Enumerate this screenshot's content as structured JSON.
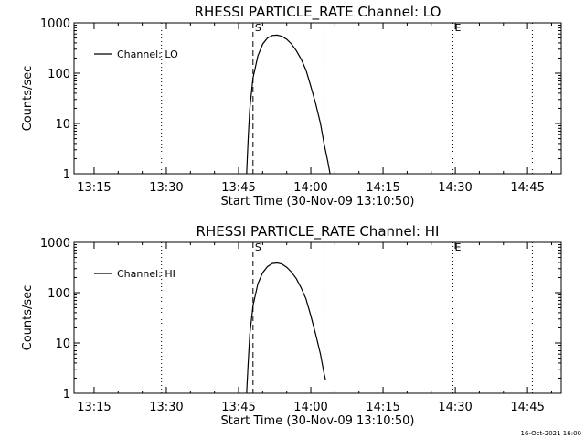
{
  "footer_timestamp": "16-Oct-2021 16:00",
  "colors": {
    "background": "#ffffff",
    "foreground": "#000000"
  },
  "chart_data": [
    {
      "type": "line",
      "title": "RHESSI PARTICLE_RATE Channel: LO",
      "xlabel": "Start Time (30-Nov-09 13:10:50)",
      "ylabel": "Counts/sec",
      "y_scale": "log",
      "ylim": [
        1,
        1000
      ],
      "y_ticks": [
        1,
        10,
        100,
        1000
      ],
      "y_tick_labels": [
        "1",
        "10",
        "100",
        "1000"
      ],
      "xlim": [
        "13:10:50",
        "14:52:00"
      ],
      "x_ticks": [
        "13:15",
        "13:30",
        "13:45",
        "14:00",
        "14:15",
        "14:30",
        "14:45"
      ],
      "legend": {
        "entries": [
          "Channel: LO"
        ],
        "position": "top-left"
      },
      "markers": [
        {
          "label": "S",
          "time": "13:48:00",
          "style": "dashed"
        },
        {
          "label": "",
          "time": "14:02:45",
          "style": "dashed"
        },
        {
          "label": "",
          "time": "13:29:00",
          "style": "dotted"
        },
        {
          "label": "E",
          "time": "14:29:30",
          "style": "dotted"
        },
        {
          "label": "",
          "time": "14:46:00",
          "style": "dotted"
        }
      ],
      "series": [
        {
          "name": "Channel: LO",
          "x": [
            "13:46:40",
            "13:47:00",
            "13:47:20",
            "13:48:00",
            "13:49:00",
            "13:50:00",
            "13:51:00",
            "13:52:00",
            "13:53:00",
            "13:54:00",
            "13:55:00",
            "13:56:00",
            "13:57:00",
            "13:58:00",
            "13:59:00",
            "14:00:00",
            "14:01:00",
            "14:02:00",
            "14:02:45",
            "14:03:30",
            "14:04:00"
          ],
          "values": [
            1,
            5,
            20,
            80,
            220,
            380,
            500,
            560,
            570,
            540,
            470,
            380,
            280,
            190,
            115,
            55,
            25,
            10,
            4,
            1.8,
            1
          ]
        }
      ]
    },
    {
      "type": "line",
      "title": "RHESSI PARTICLE_RATE Channel: HI",
      "xlabel": "Start Time (30-Nov-09 13:10:50)",
      "ylabel": "Counts/sec",
      "y_scale": "log",
      "ylim": [
        1,
        1000
      ],
      "y_ticks": [
        1,
        10,
        100,
        1000
      ],
      "y_tick_labels": [
        "1",
        "10",
        "100",
        "1000"
      ],
      "xlim": [
        "13:10:50",
        "14:52:00"
      ],
      "x_ticks": [
        "13:15",
        "13:30",
        "13:45",
        "14:00",
        "14:15",
        "14:30",
        "14:45"
      ],
      "legend": {
        "entries": [
          "Channel: HI"
        ],
        "position": "top-left"
      },
      "markers": [
        {
          "label": "S",
          "time": "13:48:00",
          "style": "dashed"
        },
        {
          "label": "",
          "time": "14:02:45",
          "style": "dashed"
        },
        {
          "label": "",
          "time": "13:29:00",
          "style": "dotted"
        },
        {
          "label": "E",
          "time": "14:29:30",
          "style": "dotted"
        },
        {
          "label": "",
          "time": "14:46:00",
          "style": "dotted"
        }
      ],
      "series": [
        {
          "name": "Channel: HI",
          "x": [
            "13:46:40",
            "13:47:00",
            "13:47:20",
            "13:48:00",
            "13:49:00",
            "13:50:00",
            "13:51:00",
            "13:52:00",
            "13:53:00",
            "13:54:00",
            "13:55:00",
            "13:56:00",
            "13:57:00",
            "13:58:00",
            "13:59:00",
            "14:00:00",
            "14:01:00",
            "14:02:00",
            "14:02:45",
            "14:03:05"
          ],
          "values": [
            1,
            4,
            15,
            55,
            150,
            250,
            330,
            380,
            390,
            370,
            320,
            255,
            190,
            125,
            75,
            35,
            15,
            6,
            2.5,
            1.8
          ]
        }
      ]
    }
  ]
}
